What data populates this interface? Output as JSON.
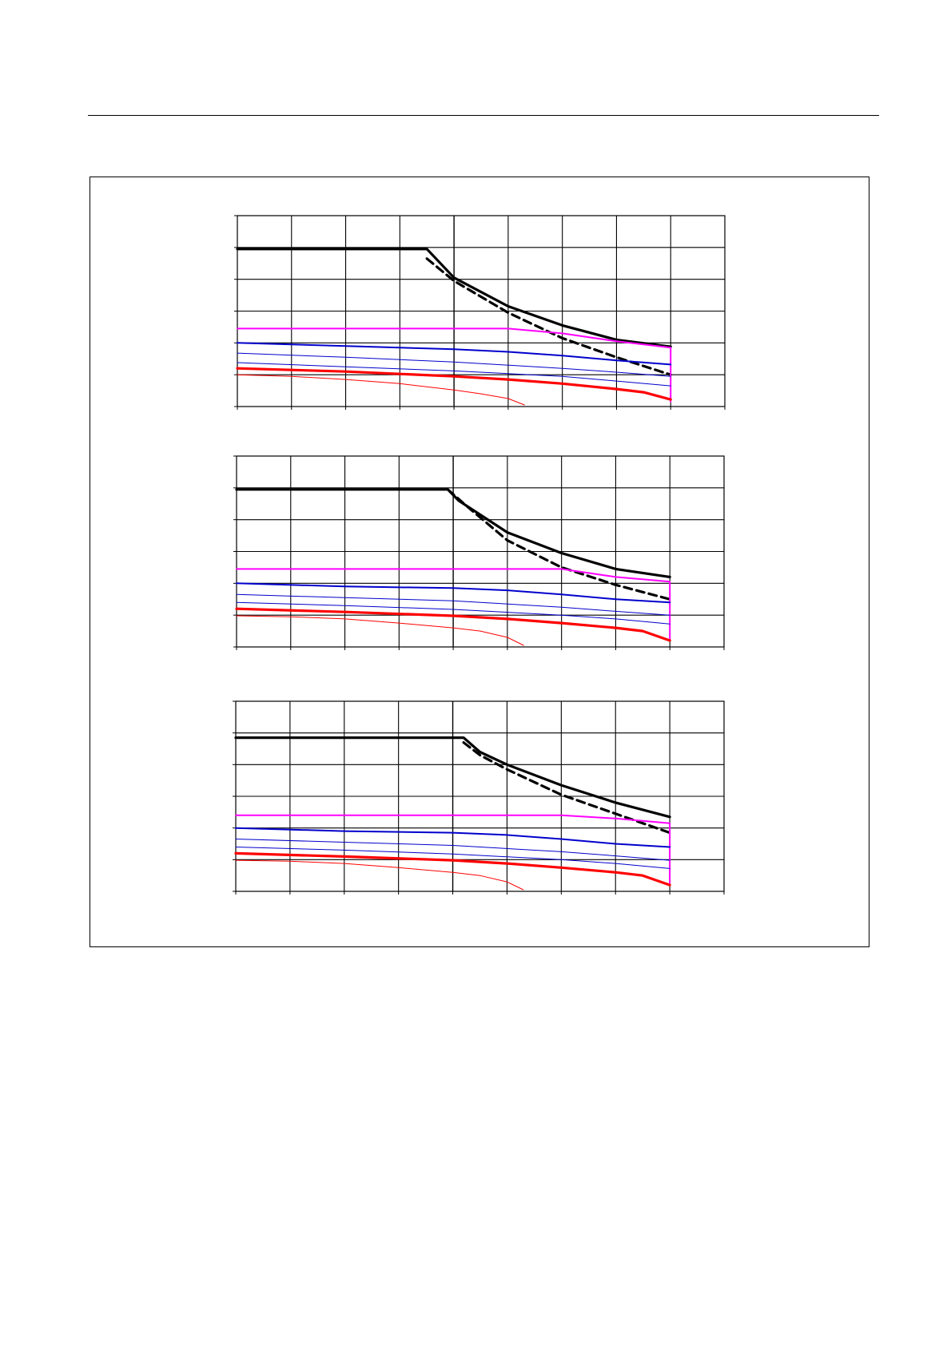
{
  "chart_data": [
    {
      "type": "line",
      "title": "",
      "xlabel": "",
      "ylabel": "",
      "grid": true,
      "xlim": [
        0,
        9
      ],
      "ylim": [
        0,
        6
      ],
      "series": [
        {
          "color": "#000000",
          "style": "solid",
          "weight": "bold",
          "points": [
            [
              0,
              4.95
            ],
            [
              3.5,
              4.95
            ],
            [
              4,
              4.05
            ],
            [
              5,
              3.15
            ],
            [
              6,
              2.55
            ],
            [
              7,
              2.1
            ],
            [
              8,
              1.88
            ]
          ]
        },
        {
          "color": "#000000",
          "style": "dashed",
          "weight": "bold",
          "points": [
            [
              3.5,
              4.65
            ],
            [
              4,
              3.95
            ],
            [
              5,
              2.95
            ],
            [
              6,
              2.15
            ],
            [
              7,
              1.55
            ],
            [
              8,
              1.0
            ]
          ]
        },
        {
          "color": "#ff00ff",
          "style": "solid",
          "weight": "normal",
          "points": [
            [
              0,
              2.45
            ],
            [
              5,
              2.45
            ],
            [
              6,
              2.3
            ],
            [
              7,
              2.05
            ],
            [
              8,
              1.85
            ],
            [
              8,
              0.15
            ]
          ]
        },
        {
          "color": "#0000cc",
          "style": "solid",
          "weight": "normal",
          "points": [
            [
              0,
              2.0
            ],
            [
              2,
              1.9
            ],
            [
              4,
              1.8
            ],
            [
              5,
              1.72
            ],
            [
              6,
              1.6
            ],
            [
              7,
              1.45
            ],
            [
              8,
              1.32
            ]
          ]
        },
        {
          "color": "#0000cc",
          "style": "solid",
          "weight": "thin",
          "points": [
            [
              0,
              1.68
            ],
            [
              2,
              1.55
            ],
            [
              4,
              1.4
            ],
            [
              6,
              1.2
            ],
            [
              7,
              1.08
            ],
            [
              8,
              0.95
            ]
          ]
        },
        {
          "color": "#0000cc",
          "style": "solid",
          "weight": "thin",
          "points": [
            [
              0,
              1.38
            ],
            [
              2,
              1.25
            ],
            [
              4,
              1.12
            ],
            [
              6,
              0.95
            ],
            [
              7,
              0.8
            ],
            [
              8,
              0.65
            ]
          ]
        },
        {
          "color": "#ff0000",
          "style": "solid",
          "weight": "bold",
          "points": [
            [
              0,
              1.2
            ],
            [
              2,
              1.1
            ],
            [
              4,
              0.95
            ],
            [
              5,
              0.85
            ],
            [
              6,
              0.72
            ],
            [
              7,
              0.55
            ],
            [
              7.5,
              0.45
            ],
            [
              8,
              0.22
            ]
          ]
        },
        {
          "color": "#ff0000",
          "style": "solid",
          "weight": "thin",
          "points": [
            [
              0,
              1.0
            ],
            [
              1,
              0.95
            ],
            [
              2,
              0.85
            ],
            [
              3,
              0.72
            ],
            [
              4,
              0.52
            ],
            [
              4.5,
              0.4
            ],
            [
              5,
              0.25
            ],
            [
              5.3,
              0.05
            ]
          ]
        }
      ]
    },
    {
      "type": "line",
      "title": "",
      "xlabel": "",
      "ylabel": "",
      "grid": true,
      "xlim": [
        0,
        9
      ],
      "ylim": [
        0,
        6
      ],
      "series": [
        {
          "color": "#000000",
          "style": "solid",
          "weight": "bold",
          "points": [
            [
              0,
              4.95
            ],
            [
              3.9,
              4.95
            ],
            [
              4.1,
              4.6
            ],
            [
              5,
              3.6
            ],
            [
              6,
              2.95
            ],
            [
              7,
              2.45
            ],
            [
              8,
              2.2
            ]
          ]
        },
        {
          "color": "#000000",
          "style": "dashed",
          "weight": "bold",
          "points": [
            [
              3.9,
              4.95
            ],
            [
              4.2,
              4.5
            ],
            [
              5,
              3.35
            ],
            [
              6,
              2.5
            ],
            [
              7,
              1.95
            ],
            [
              8,
              1.5
            ]
          ]
        },
        {
          "color": "#ff00ff",
          "style": "solid",
          "weight": "normal",
          "points": [
            [
              0,
              2.45
            ],
            [
              6,
              2.45
            ],
            [
              7,
              2.2
            ],
            [
              8,
              2.05
            ],
            [
              8,
              0.2
            ]
          ]
        },
        {
          "color": "#0000cc",
          "style": "solid",
          "weight": "normal",
          "points": [
            [
              0,
              2.0
            ],
            [
              2,
              1.9
            ],
            [
              4,
              1.85
            ],
            [
              5,
              1.78
            ],
            [
              6,
              1.65
            ],
            [
              7,
              1.5
            ],
            [
              8,
              1.4
            ]
          ]
        },
        {
          "color": "#0000cc",
          "style": "solid",
          "weight": "thin",
          "points": [
            [
              0,
              1.65
            ],
            [
              2,
              1.55
            ],
            [
              4,
              1.45
            ],
            [
              6,
              1.25
            ],
            [
              7,
              1.12
            ],
            [
              8,
              1.0
            ]
          ]
        },
        {
          "color": "#0000cc",
          "style": "solid",
          "weight": "thin",
          "points": [
            [
              0,
              1.4
            ],
            [
              2,
              1.3
            ],
            [
              4,
              1.18
            ],
            [
              6,
              1.0
            ],
            [
              7,
              0.88
            ],
            [
              8,
              0.72
            ]
          ]
        },
        {
          "color": "#ff0000",
          "style": "solid",
          "weight": "bold",
          "points": [
            [
              0,
              1.2
            ],
            [
              2,
              1.1
            ],
            [
              4,
              0.98
            ],
            [
              5,
              0.88
            ],
            [
              6,
              0.75
            ],
            [
              7,
              0.6
            ],
            [
              7.5,
              0.5
            ],
            [
              8,
              0.2
            ]
          ]
        },
        {
          "color": "#ff0000",
          "style": "solid",
          "weight": "thin",
          "points": [
            [
              0,
              0.98
            ],
            [
              1,
              0.95
            ],
            [
              2,
              0.88
            ],
            [
              3,
              0.75
            ],
            [
              4,
              0.6
            ],
            [
              4.5,
              0.5
            ],
            [
              5,
              0.3
            ],
            [
              5.3,
              0.05
            ]
          ]
        }
      ]
    },
    {
      "type": "line",
      "title": "",
      "xlabel": "",
      "ylabel": "",
      "grid": true,
      "xlim": [
        0,
        9
      ],
      "ylim": [
        0,
        6
      ],
      "series": [
        {
          "color": "#000000",
          "style": "solid",
          "weight": "bold",
          "points": [
            [
              0,
              4.85
            ],
            [
              4.2,
              4.85
            ],
            [
              4.5,
              4.4
            ],
            [
              5,
              4.0
            ],
            [
              6,
              3.35
            ],
            [
              7,
              2.8
            ],
            [
              8,
              2.35
            ]
          ]
        },
        {
          "color": "#000000",
          "style": "dashed",
          "weight": "bold",
          "points": [
            [
              4.2,
              4.7
            ],
            [
              4.5,
              4.3
            ],
            [
              5,
              3.85
            ],
            [
              6,
              3.05
            ],
            [
              7,
              2.45
            ],
            [
              8,
              1.85
            ]
          ]
        },
        {
          "color": "#ff00ff",
          "style": "solid",
          "weight": "normal",
          "points": [
            [
              0,
              2.4
            ],
            [
              6,
              2.4
            ],
            [
              7,
              2.3
            ],
            [
              8,
              2.15
            ],
            [
              8,
              0.2
            ]
          ]
        },
        {
          "color": "#0000cc",
          "style": "solid",
          "weight": "normal",
          "points": [
            [
              0,
              2.0
            ],
            [
              2,
              1.9
            ],
            [
              4,
              1.85
            ],
            [
              5,
              1.78
            ],
            [
              6,
              1.65
            ],
            [
              7,
              1.5
            ],
            [
              8,
              1.4
            ]
          ]
        },
        {
          "color": "#0000cc",
          "style": "solid",
          "weight": "thin",
          "points": [
            [
              0,
              1.65
            ],
            [
              2,
              1.55
            ],
            [
              4,
              1.45
            ],
            [
              6,
              1.25
            ],
            [
              7,
              1.12
            ],
            [
              8,
              0.98
            ]
          ]
        },
        {
          "color": "#0000cc",
          "style": "solid",
          "weight": "thin",
          "points": [
            [
              0,
              1.4
            ],
            [
              2,
              1.3
            ],
            [
              4,
              1.18
            ],
            [
              6,
              1.0
            ],
            [
              7,
              0.88
            ],
            [
              8,
              0.72
            ]
          ]
        },
        {
          "color": "#ff0000",
          "style": "solid",
          "weight": "bold",
          "points": [
            [
              0,
              1.2
            ],
            [
              2,
              1.1
            ],
            [
              4,
              0.98
            ],
            [
              5,
              0.88
            ],
            [
              6,
              0.75
            ],
            [
              7,
              0.6
            ],
            [
              7.5,
              0.5
            ],
            [
              8,
              0.2
            ]
          ]
        },
        {
          "color": "#ff0000",
          "style": "solid",
          "weight": "thin",
          "points": [
            [
              0,
              0.98
            ],
            [
              1,
              0.95
            ],
            [
              2,
              0.88
            ],
            [
              3,
              0.75
            ],
            [
              4,
              0.6
            ],
            [
              4.5,
              0.5
            ],
            [
              5,
              0.3
            ],
            [
              5.3,
              0.05
            ]
          ]
        }
      ]
    }
  ]
}
